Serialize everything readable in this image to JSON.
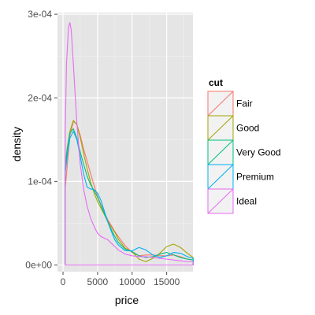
{
  "chart_data": {
    "type": "line",
    "title": "",
    "xlabel": "price",
    "ylabel": "density",
    "xlim": [
      -800,
      18800
    ],
    "ylim": [
      -8e-06,
      0.000302
    ],
    "x_ticks": [
      0,
      5000,
      10000,
      15000
    ],
    "x_tick_labels": [
      "0",
      "5000",
      "10000",
      "15000"
    ],
    "y_ticks": [
      0,
      0.0001,
      0.0002,
      0.0003
    ],
    "y_tick_labels": [
      "0e+00",
      "1e-04",
      "2e-04",
      "3e-04"
    ],
    "grid": true,
    "background": "#e5e5e5",
    "legend": {
      "title": "cut",
      "placement": "right"
    },
    "series": [
      {
        "name": "Fair",
        "color": "#f8766d",
        "points": [
          [
            330,
            9.2e-05
          ],
          [
            600,
            0.000118
          ],
          [
            1000,
            0.000155
          ],
          [
            1500,
            0.000172
          ],
          [
            2000,
            0.000168
          ],
          [
            2500,
            0.000155
          ],
          [
            3000,
            0.000138
          ],
          [
            3500,
            0.000124
          ],
          [
            4000,
            0.000109
          ],
          [
            4500,
            9.5e-05
          ],
          [
            5000,
            8.2e-05
          ],
          [
            5500,
            7.2e-05
          ],
          [
            6000,
            6.2e-05
          ],
          [
            6500,
            5.4e-05
          ],
          [
            7000,
            4.7e-05
          ],
          [
            7500,
            4e-05
          ],
          [
            8000,
            3.4e-05
          ],
          [
            9000,
            2.3e-05
          ],
          [
            10000,
            1.5e-05
          ],
          [
            11000,
            1.1e-05
          ],
          [
            12000,
            1.2e-05
          ],
          [
            13000,
            1.2e-05
          ],
          [
            14000,
            1.1e-05
          ],
          [
            15000,
            1.1e-05
          ],
          [
            16000,
            1.2e-05
          ],
          [
            17000,
            1e-05
          ],
          [
            18000,
            7e-06
          ],
          [
            18823,
            6e-06
          ]
        ]
      },
      {
        "name": "Good",
        "color": "#a3a500",
        "points": [
          [
            330,
            0.00012
          ],
          [
            600,
            0.00014
          ],
          [
            1000,
            0.00016
          ],
          [
            1500,
            0.000173
          ],
          [
            2000,
            0.000168
          ],
          [
            2500,
            0.000152
          ],
          [
            3000,
            0.000133
          ],
          [
            3500,
            0.000115
          ],
          [
            4000,
            9.9e-05
          ],
          [
            4500,
            8.6e-05
          ],
          [
            5000,
            7.6e-05
          ],
          [
            5500,
            6.8e-05
          ],
          [
            6000,
            6e-05
          ],
          [
            6500,
            5.2e-05
          ],
          [
            7000,
            4.5e-05
          ],
          [
            7500,
            3.9e-05
          ],
          [
            8000,
            3.1e-05
          ],
          [
            9000,
            2e-05
          ],
          [
            10000,
            1.6e-05
          ],
          [
            11000,
            7e-06
          ],
          [
            12000,
            4e-06
          ],
          [
            13000,
            8e-06
          ],
          [
            14000,
            1.4e-05
          ],
          [
            15000,
            2.2e-05
          ],
          [
            16000,
            2.5e-05
          ],
          [
            17000,
            2.1e-05
          ],
          [
            18000,
            1.4e-05
          ],
          [
            18823,
            9e-06
          ]
        ]
      },
      {
        "name": "Very Good",
        "color": "#00bf7d",
        "points": [
          [
            330,
            0.000115
          ],
          [
            600,
            0.000138
          ],
          [
            1000,
            0.000158
          ],
          [
            1500,
            0.000163
          ],
          [
            2000,
            0.000152
          ],
          [
            2500,
            0.000135
          ],
          [
            3000,
            0.00012
          ],
          [
            3500,
            0.000106
          ],
          [
            4000,
            9.6e-05
          ],
          [
            4500,
            8.9e-05
          ],
          [
            5000,
            8.1e-05
          ],
          [
            5500,
            7.1e-05
          ],
          [
            6000,
            6.1e-05
          ],
          [
            6500,
            5.1e-05
          ],
          [
            7000,
            4.2e-05
          ],
          [
            7500,
            3.4e-05
          ],
          [
            8000,
            2.7e-05
          ],
          [
            9000,
            1.9e-05
          ],
          [
            10000,
            1.6e-05
          ],
          [
            11000,
            1.1e-05
          ],
          [
            12000,
            9e-06
          ],
          [
            13000,
            1e-05
          ],
          [
            14000,
            1.3e-05
          ],
          [
            15000,
            1.5e-05
          ],
          [
            16000,
            1.2e-05
          ],
          [
            17000,
            9e-06
          ],
          [
            18000,
            7e-06
          ],
          [
            18823,
            6e-06
          ]
        ]
      },
      {
        "name": "Premium",
        "color": "#00b0f6",
        "points": [
          [
            330,
            0.00011
          ],
          [
            600,
            0.00013
          ],
          [
            1000,
            0.000152
          ],
          [
            1500,
            0.00016
          ],
          [
            2000,
            0.00015
          ],
          [
            2500,
            0.00013
          ],
          [
            3000,
            0.000108
          ],
          [
            3500,
            9.3e-05
          ],
          [
            4000,
            9.1e-05
          ],
          [
            4500,
            9e-05
          ],
          [
            5000,
            8.6e-05
          ],
          [
            5500,
            7.7e-05
          ],
          [
            6000,
            6.4e-05
          ],
          [
            6500,
            5.1e-05
          ],
          [
            7000,
            4e-05
          ],
          [
            7500,
            3e-05
          ],
          [
            8000,
            2.4e-05
          ],
          [
            9000,
            1.7e-05
          ],
          [
            10000,
            1.7e-05
          ],
          [
            11000,
            2.1e-05
          ],
          [
            12000,
            1.8e-05
          ],
          [
            13000,
            1.2e-05
          ],
          [
            14000,
            9e-06
          ],
          [
            15000,
            1.1e-05
          ],
          [
            16000,
            1.5e-05
          ],
          [
            17000,
            1.4e-05
          ],
          [
            18000,
            1e-05
          ],
          [
            18823,
            8e-06
          ]
        ]
      },
      {
        "name": "Ideal",
        "color": "#e76bf3",
        "points": [
          [
            330,
            0.00016
          ],
          [
            500,
            0.00024
          ],
          [
            800,
            0.000285
          ],
          [
            1000,
            0.00029
          ],
          [
            1200,
            0.00028
          ],
          [
            1500,
            0.00024
          ],
          [
            2000,
            0.00017
          ],
          [
            2500,
            0.00012
          ],
          [
            3000,
            9e-05
          ],
          [
            3500,
            7e-05
          ],
          [
            4000,
            5.6e-05
          ],
          [
            4500,
            4.6e-05
          ],
          [
            5000,
            3.8e-05
          ],
          [
            5500,
            3.4e-05
          ],
          [
            6000,
            3.2e-05
          ],
          [
            6500,
            3e-05
          ],
          [
            7000,
            2.6e-05
          ],
          [
            7500,
            2.2e-05
          ],
          [
            8000,
            1.8e-05
          ],
          [
            9000,
            1.3e-05
          ],
          [
            10000,
            1.1e-05
          ],
          [
            11000,
            1e-05
          ],
          [
            12000,
            1e-05
          ],
          [
            13000,
            9e-06
          ],
          [
            14000,
            8e-06
          ],
          [
            15000,
            7e-06
          ],
          [
            16000,
            6e-06
          ],
          [
            17000,
            5e-06
          ],
          [
            18000,
            4e-06
          ],
          [
            18823,
            4e-06
          ]
        ]
      }
    ]
  }
}
